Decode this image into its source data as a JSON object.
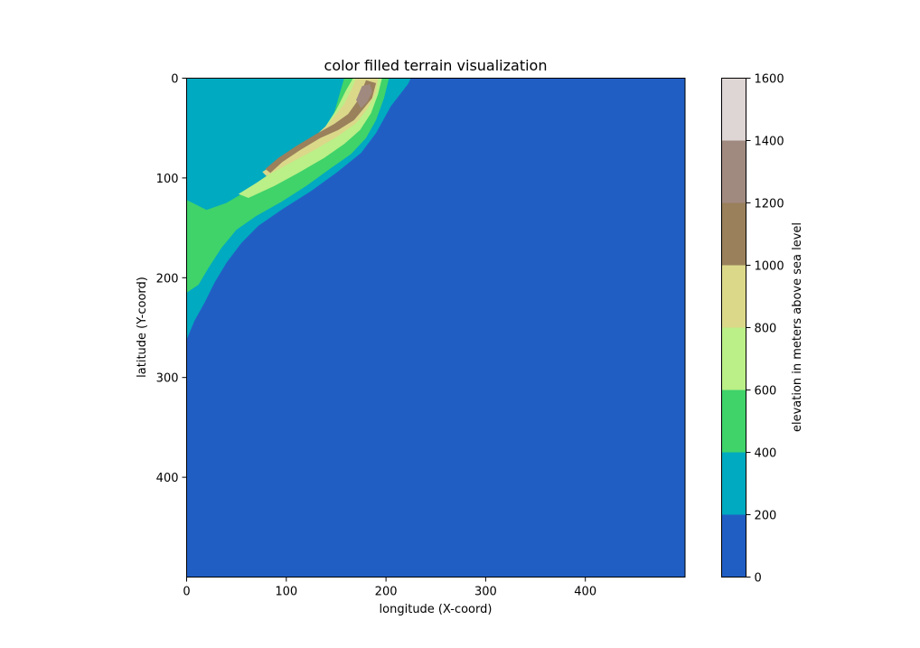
{
  "chart_data": {
    "type": "heatmap",
    "subtype": "filled-contour",
    "title": "color filled terrain visualization",
    "xlabel": "longitude (X-coord)",
    "ylabel": "latitude (Y-coord)",
    "xlim": [
      0,
      500
    ],
    "ylim": [
      500,
      0
    ],
    "xticks": [
      0,
      100,
      200,
      300,
      400
    ],
    "yticks": [
      0,
      100,
      200,
      300,
      400
    ],
    "y_inverted": true,
    "grid": false,
    "colorbar": {
      "label": "elevation in meters above sea level",
      "ticks": [
        0,
        200,
        400,
        600,
        800,
        1000,
        1200,
        1400,
        1600
      ],
      "levels": [
        {
          "range": [
            0,
            200
          ],
          "color": "#215ec4"
        },
        {
          "range": [
            200,
            400
          ],
          "color": "#00aac0"
        },
        {
          "range": [
            400,
            600
          ],
          "color": "#3fd36a"
        },
        {
          "range": [
            600,
            800
          ],
          "color": "#bbef87"
        },
        {
          "range": [
            800,
            1000
          ],
          "color": "#dbd88a"
        },
        {
          "range": [
            1000,
            1200
          ],
          "color": "#9a805b"
        },
        {
          "range": [
            1200,
            1400
          ],
          "color": "#a08a80"
        },
        {
          "range": [
            1400,
            1600
          ],
          "color": "#ded6d4"
        }
      ]
    },
    "regions": [
      {
        "level": "200-400",
        "color": "#00aac0",
        "points": [
          [
            0,
            0
          ],
          [
            225,
            0
          ],
          [
            222,
            6
          ],
          [
            205,
            28
          ],
          [
            190,
            55
          ],
          [
            175,
            75
          ],
          [
            150,
            95
          ],
          [
            125,
            113
          ],
          [
            95,
            132
          ],
          [
            72,
            148
          ],
          [
            55,
            165
          ],
          [
            40,
            185
          ],
          [
            28,
            205
          ],
          [
            18,
            225
          ],
          [
            8,
            243
          ],
          [
            0,
            262
          ]
        ]
      },
      {
        "level": "400-600",
        "color": "#3fd36a",
        "points": [
          [
            158,
            0
          ],
          [
            203,
            0
          ],
          [
            198,
            20
          ],
          [
            190,
            42
          ],
          [
            180,
            60
          ],
          [
            165,
            76
          ],
          [
            145,
            90
          ],
          [
            120,
            108
          ],
          [
            95,
            124
          ],
          [
            70,
            138
          ],
          [
            50,
            152
          ],
          [
            35,
            170
          ],
          [
            22,
            190
          ],
          [
            12,
            207
          ],
          [
            0,
            215
          ],
          [
            0,
            122
          ],
          [
            20,
            132
          ],
          [
            40,
            125
          ],
          [
            62,
            112
          ],
          [
            85,
            98
          ],
          [
            110,
            80
          ],
          [
            132,
            60
          ],
          [
            148,
            35
          ]
        ]
      },
      {
        "level": "600-800",
        "color": "#bbef87",
        "points": [
          [
            167,
            0
          ],
          [
            196,
            0
          ],
          [
            192,
            16
          ],
          [
            185,
            35
          ],
          [
            174,
            52
          ],
          [
            158,
            66
          ],
          [
            138,
            80
          ],
          [
            112,
            95
          ],
          [
            88,
            108
          ],
          [
            62,
            120
          ],
          [
            52,
            116
          ],
          [
            70,
            105
          ],
          [
            92,
            90
          ],
          [
            115,
            73
          ],
          [
            135,
            55
          ],
          [
            150,
            32
          ],
          [
            160,
            12
          ]
        ]
      },
      {
        "level": "800-1000",
        "color": "#dbd88a",
        "points": [
          [
            170,
            0
          ],
          [
            192,
            0
          ],
          [
            190,
            14
          ],
          [
            182,
            30
          ],
          [
            170,
            45
          ],
          [
            152,
            58
          ],
          [
            128,
            72
          ],
          [
            102,
            86
          ],
          [
            80,
            98
          ],
          [
            76,
            94
          ],
          [
            98,
            80
          ],
          [
            122,
            64
          ],
          [
            142,
            46
          ],
          [
            158,
            26
          ],
          [
            166,
            10
          ]
        ]
      },
      {
        "level": "1000-1200",
        "color": "#9a805b",
        "points": [
          [
            180,
            2
          ],
          [
            190,
            5
          ],
          [
            186,
            20
          ],
          [
            178,
            30
          ],
          [
            168,
            42
          ],
          [
            152,
            52
          ],
          [
            134,
            60
          ],
          [
            114,
            72
          ],
          [
            96,
            84
          ],
          [
            84,
            95
          ],
          [
            79,
            91
          ],
          [
            92,
            80
          ],
          [
            110,
            68
          ],
          [
            130,
            56
          ],
          [
            148,
            46
          ],
          [
            162,
            36
          ],
          [
            172,
            22
          ]
        ]
      },
      {
        "level": "1200-1400",
        "color": "#a08a80",
        "points": [
          [
            176,
            8
          ],
          [
            184,
            6
          ],
          [
            186,
            14
          ],
          [
            181,
            24
          ],
          [
            175,
            30
          ],
          [
            170,
            22
          ]
        ]
      }
    ]
  }
}
